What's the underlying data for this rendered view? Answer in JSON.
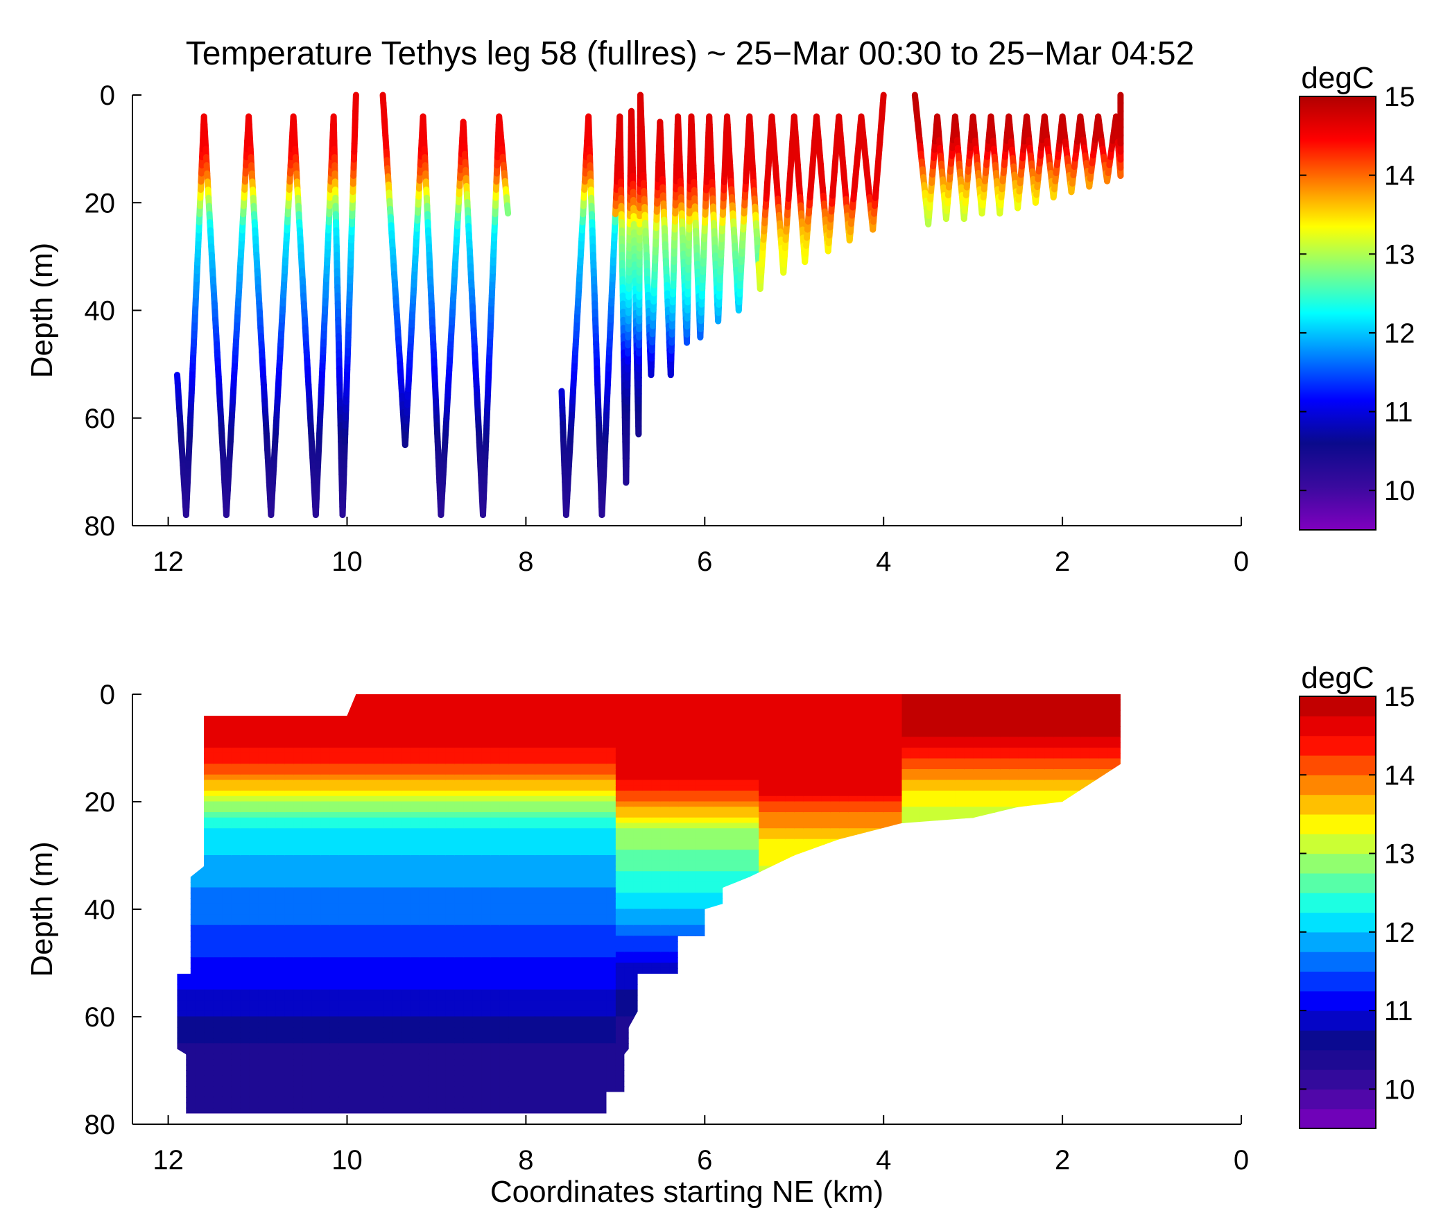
{
  "figure": {
    "title": "Temperature Tethys leg 58 (fullres) ~ 25−Mar 00:30 to 25−Mar 04:52",
    "colormap": [
      "#7f00bf",
      "#3a0a9e",
      "#0a0a8c",
      "#0000ff",
      "#0080ff",
      "#00ffff",
      "#80ff80",
      "#ffff00",
      "#ff8000",
      "#ff0000",
      "#b00000"
    ]
  },
  "chart_data": [
    {
      "type": "scatter",
      "title": "Temperature Tethys leg 58 (fullres) ~ 25−Mar 00:30 to 25−Mar 04:52",
      "xlabel": "",
      "ylabel": "Depth (m)",
      "xlim": [
        12.4,
        0
      ],
      "ylim": [
        0,
        80
      ],
      "y_reversed": true,
      "xticks": [
        "12",
        "10",
        "8",
        "6",
        "4",
        "2",
        "0"
      ],
      "yticks": [
        "0",
        "20",
        "40",
        "60",
        "80"
      ],
      "colorbar": {
        "label": "degC",
        "range": [
          9.5,
          15
        ],
        "ticks": [
          "10",
          "11",
          "12",
          "13",
          "14",
          "15"
        ]
      },
      "profile_turning_points": [
        {
          "x": 11.9,
          "depth": 52
        },
        {
          "x": 11.8,
          "depth": 78
        },
        {
          "x": 11.6,
          "depth": 4
        },
        {
          "x": 11.35,
          "depth": 78
        },
        {
          "x": 11.1,
          "depth": 4
        },
        {
          "x": 10.85,
          "depth": 78
        },
        {
          "x": 10.6,
          "depth": 4
        },
        {
          "x": 10.35,
          "depth": 78
        },
        {
          "x": 10.15,
          "depth": 4
        },
        {
          "x": 10.05,
          "depth": 78
        },
        {
          "x": 9.9,
          "depth": 0
        },
        {
          "gap": true
        },
        {
          "x": 9.6,
          "depth": 0
        },
        {
          "x": 9.35,
          "depth": 65
        },
        {
          "x": 9.15,
          "depth": 4
        },
        {
          "x": 8.95,
          "depth": 78
        },
        {
          "x": 8.7,
          "depth": 5
        },
        {
          "x": 8.48,
          "depth": 78
        },
        {
          "x": 8.3,
          "depth": 4
        },
        {
          "x": 8.2,
          "depth": 22
        },
        {
          "gap": true
        },
        {
          "x": 7.6,
          "depth": 55
        },
        {
          "x": 7.55,
          "depth": 78
        },
        {
          "x": 7.3,
          "depth": 4
        },
        {
          "x": 7.15,
          "depth": 78
        },
        {
          "x": 6.95,
          "depth": 4
        },
        {
          "x": 6.88,
          "depth": 72
        },
        {
          "x": 6.82,
          "depth": 3
        },
        {
          "x": 6.74,
          "depth": 63
        },
        {
          "x": 6.72,
          "depth": 0
        },
        {
          "x": 6.6,
          "depth": 52
        },
        {
          "x": 6.5,
          "depth": 5
        },
        {
          "x": 6.38,
          "depth": 52
        },
        {
          "x": 6.3,
          "depth": 4
        },
        {
          "x": 6.2,
          "depth": 46
        },
        {
          "x": 6.15,
          "depth": 4
        },
        {
          "x": 6.05,
          "depth": 45
        },
        {
          "x": 5.95,
          "depth": 4
        },
        {
          "x": 5.85,
          "depth": 42
        },
        {
          "x": 5.75,
          "depth": 4
        },
        {
          "x": 5.62,
          "depth": 40
        },
        {
          "x": 5.5,
          "depth": 4
        },
        {
          "x": 5.38,
          "depth": 36
        },
        {
          "x": 5.25,
          "depth": 4
        },
        {
          "x": 5.12,
          "depth": 33
        },
        {
          "x": 5.0,
          "depth": 4
        },
        {
          "x": 4.88,
          "depth": 31
        },
        {
          "x": 4.75,
          "depth": 4
        },
        {
          "x": 4.62,
          "depth": 29
        },
        {
          "x": 4.5,
          "depth": 4
        },
        {
          "x": 4.38,
          "depth": 27
        },
        {
          "x": 4.25,
          "depth": 4
        },
        {
          "x": 4.12,
          "depth": 25
        },
        {
          "x": 4.0,
          "depth": 0
        },
        {
          "gap": true
        },
        {
          "x": 3.65,
          "depth": 0
        },
        {
          "x": 3.6,
          "depth": 8
        },
        {
          "x": 3.5,
          "depth": 24
        },
        {
          "x": 3.4,
          "depth": 4
        },
        {
          "x": 3.3,
          "depth": 23
        },
        {
          "x": 3.2,
          "depth": 4
        },
        {
          "x": 3.1,
          "depth": 23
        },
        {
          "x": 3.0,
          "depth": 4
        },
        {
          "x": 2.9,
          "depth": 22
        },
        {
          "x": 2.8,
          "depth": 4
        },
        {
          "x": 2.7,
          "depth": 22
        },
        {
          "x": 2.6,
          "depth": 4
        },
        {
          "x": 2.5,
          "depth": 21
        },
        {
          "x": 2.4,
          "depth": 4
        },
        {
          "x": 2.3,
          "depth": 20
        },
        {
          "x": 2.2,
          "depth": 4
        },
        {
          "x": 2.1,
          "depth": 19
        },
        {
          "x": 2.0,
          "depth": 4
        },
        {
          "x": 1.9,
          "depth": 18
        },
        {
          "x": 1.8,
          "depth": 4
        },
        {
          "x": 1.7,
          "depth": 17
        },
        {
          "x": 1.6,
          "depth": 4
        },
        {
          "x": 1.5,
          "depth": 16
        },
        {
          "x": 1.4,
          "depth": 4
        },
        {
          "x": 1.35,
          "depth": 15
        },
        {
          "x": 1.35,
          "depth": 0
        }
      ],
      "temperature_profile_by_depth": [
        {
          "x_min": 7.0,
          "x_max": 12.4,
          "pairs": [
            [
              0,
              14.6
            ],
            [
              10,
              14.5
            ],
            [
              15,
              14.0
            ],
            [
              20,
              13.0
            ],
            [
              25,
              12.2
            ],
            [
              35,
              11.8
            ],
            [
              45,
              11.4
            ],
            [
              55,
              11.0
            ],
            [
              65,
              10.5
            ],
            [
              80,
              10.2
            ]
          ]
        },
        {
          "x_min": 5.4,
          "x_max": 7.0,
          "pairs": [
            [
              0,
              14.7
            ],
            [
              15,
              14.6
            ],
            [
              20,
              14.0
            ],
            [
              25,
              13.0
            ],
            [
              35,
              12.4
            ],
            [
              42,
              11.8
            ],
            [
              50,
              11.0
            ],
            [
              60,
              10.5
            ],
            [
              80,
              10.2
            ]
          ]
        },
        {
          "x_min": 3.8,
          "x_max": 5.4,
          "pairs": [
            [
              0,
              14.7
            ],
            [
              18,
              14.6
            ],
            [
              22,
              14.0
            ],
            [
              28,
              13.4
            ],
            [
              40,
              13.0
            ]
          ]
        },
        {
          "x_min": 0,
          "x_max": 3.8,
          "pairs": [
            [
              0,
              14.9
            ],
            [
              8,
              14.8
            ],
            [
              12,
              14.3
            ],
            [
              16,
              13.8
            ],
            [
              20,
              13.3
            ],
            [
              25,
              12.9
            ]
          ]
        }
      ]
    },
    {
      "type": "heatmap",
      "title": "",
      "xlabel": "Coordinates starting NE (km)",
      "ylabel": "Depth (m)",
      "xlim": [
        12.4,
        0
      ],
      "ylim": [
        0,
        80
      ],
      "y_reversed": true,
      "xticks": [
        "12",
        "10",
        "8",
        "6",
        "4",
        "2",
        "0"
      ],
      "yticks": [
        "0",
        "20",
        "40",
        "60",
        "80"
      ],
      "colorbar": {
        "label": "degC",
        "range": [
          9.5,
          15
        ],
        "levels": 22,
        "ticks": [
          "10",
          "11",
          "12",
          "13",
          "14",
          "15"
        ]
      },
      "data_domain": {
        "surface": [
          [
            11.6,
            4
          ],
          [
            10.0,
            4
          ],
          [
            9.9,
            0
          ],
          [
            1.35,
            0
          ],
          [
            1.35,
            13
          ]
        ],
        "bottom": [
          [
            1.35,
            13
          ],
          [
            2.0,
            20
          ],
          [
            2.5,
            21
          ],
          [
            3.0,
            23
          ],
          [
            3.8,
            24
          ],
          [
            4.5,
            27
          ],
          [
            5.0,
            30
          ],
          [
            5.5,
            34
          ],
          [
            5.8,
            36
          ],
          [
            5.8,
            39
          ],
          [
            6.0,
            40
          ],
          [
            6.0,
            45
          ],
          [
            6.3,
            45
          ],
          [
            6.3,
            52
          ],
          [
            6.75,
            52
          ],
          [
            6.75,
            59
          ],
          [
            6.85,
            62
          ],
          [
            6.85,
            66
          ],
          [
            6.9,
            67
          ],
          [
            6.9,
            74
          ],
          [
            7.1,
            74
          ],
          [
            7.1,
            78
          ],
          [
            11.8,
            78
          ],
          [
            11.8,
            67
          ],
          [
            11.9,
            66
          ],
          [
            11.9,
            52
          ],
          [
            11.75,
            52
          ],
          [
            11.75,
            34
          ],
          [
            11.6,
            32
          ]
        ]
      },
      "temperature_profile_by_depth": [
        {
          "x_min": 7.0,
          "x_max": 12.4,
          "pairs": [
            [
              0,
              14.6
            ],
            [
              10,
              14.5
            ],
            [
              15,
              14.0
            ],
            [
              20,
              13.0
            ],
            [
              25,
              12.2
            ],
            [
              35,
              11.8
            ],
            [
              45,
              11.4
            ],
            [
              55,
              11.0
            ],
            [
              65,
              10.5
            ],
            [
              80,
              10.2
            ]
          ]
        },
        {
          "x_min": 5.4,
          "x_max": 7.0,
          "pairs": [
            [
              0,
              14.7
            ],
            [
              15,
              14.6
            ],
            [
              20,
              14.0
            ],
            [
              25,
              13.0
            ],
            [
              35,
              12.4
            ],
            [
              42,
              11.8
            ],
            [
              50,
              11.0
            ],
            [
              60,
              10.5
            ],
            [
              80,
              10.2
            ]
          ]
        },
        {
          "x_min": 3.8,
          "x_max": 5.4,
          "pairs": [
            [
              0,
              14.7
            ],
            [
              18,
              14.6
            ],
            [
              22,
              14.0
            ],
            [
              28,
              13.4
            ],
            [
              40,
              13.0
            ]
          ]
        },
        {
          "x_min": 0,
          "x_max": 3.8,
          "pairs": [
            [
              0,
              14.9
            ],
            [
              8,
              14.8
            ],
            [
              12,
              14.3
            ],
            [
              16,
              13.8
            ],
            [
              20,
              13.3
            ],
            [
              25,
              12.9
            ]
          ]
        }
      ]
    }
  ]
}
